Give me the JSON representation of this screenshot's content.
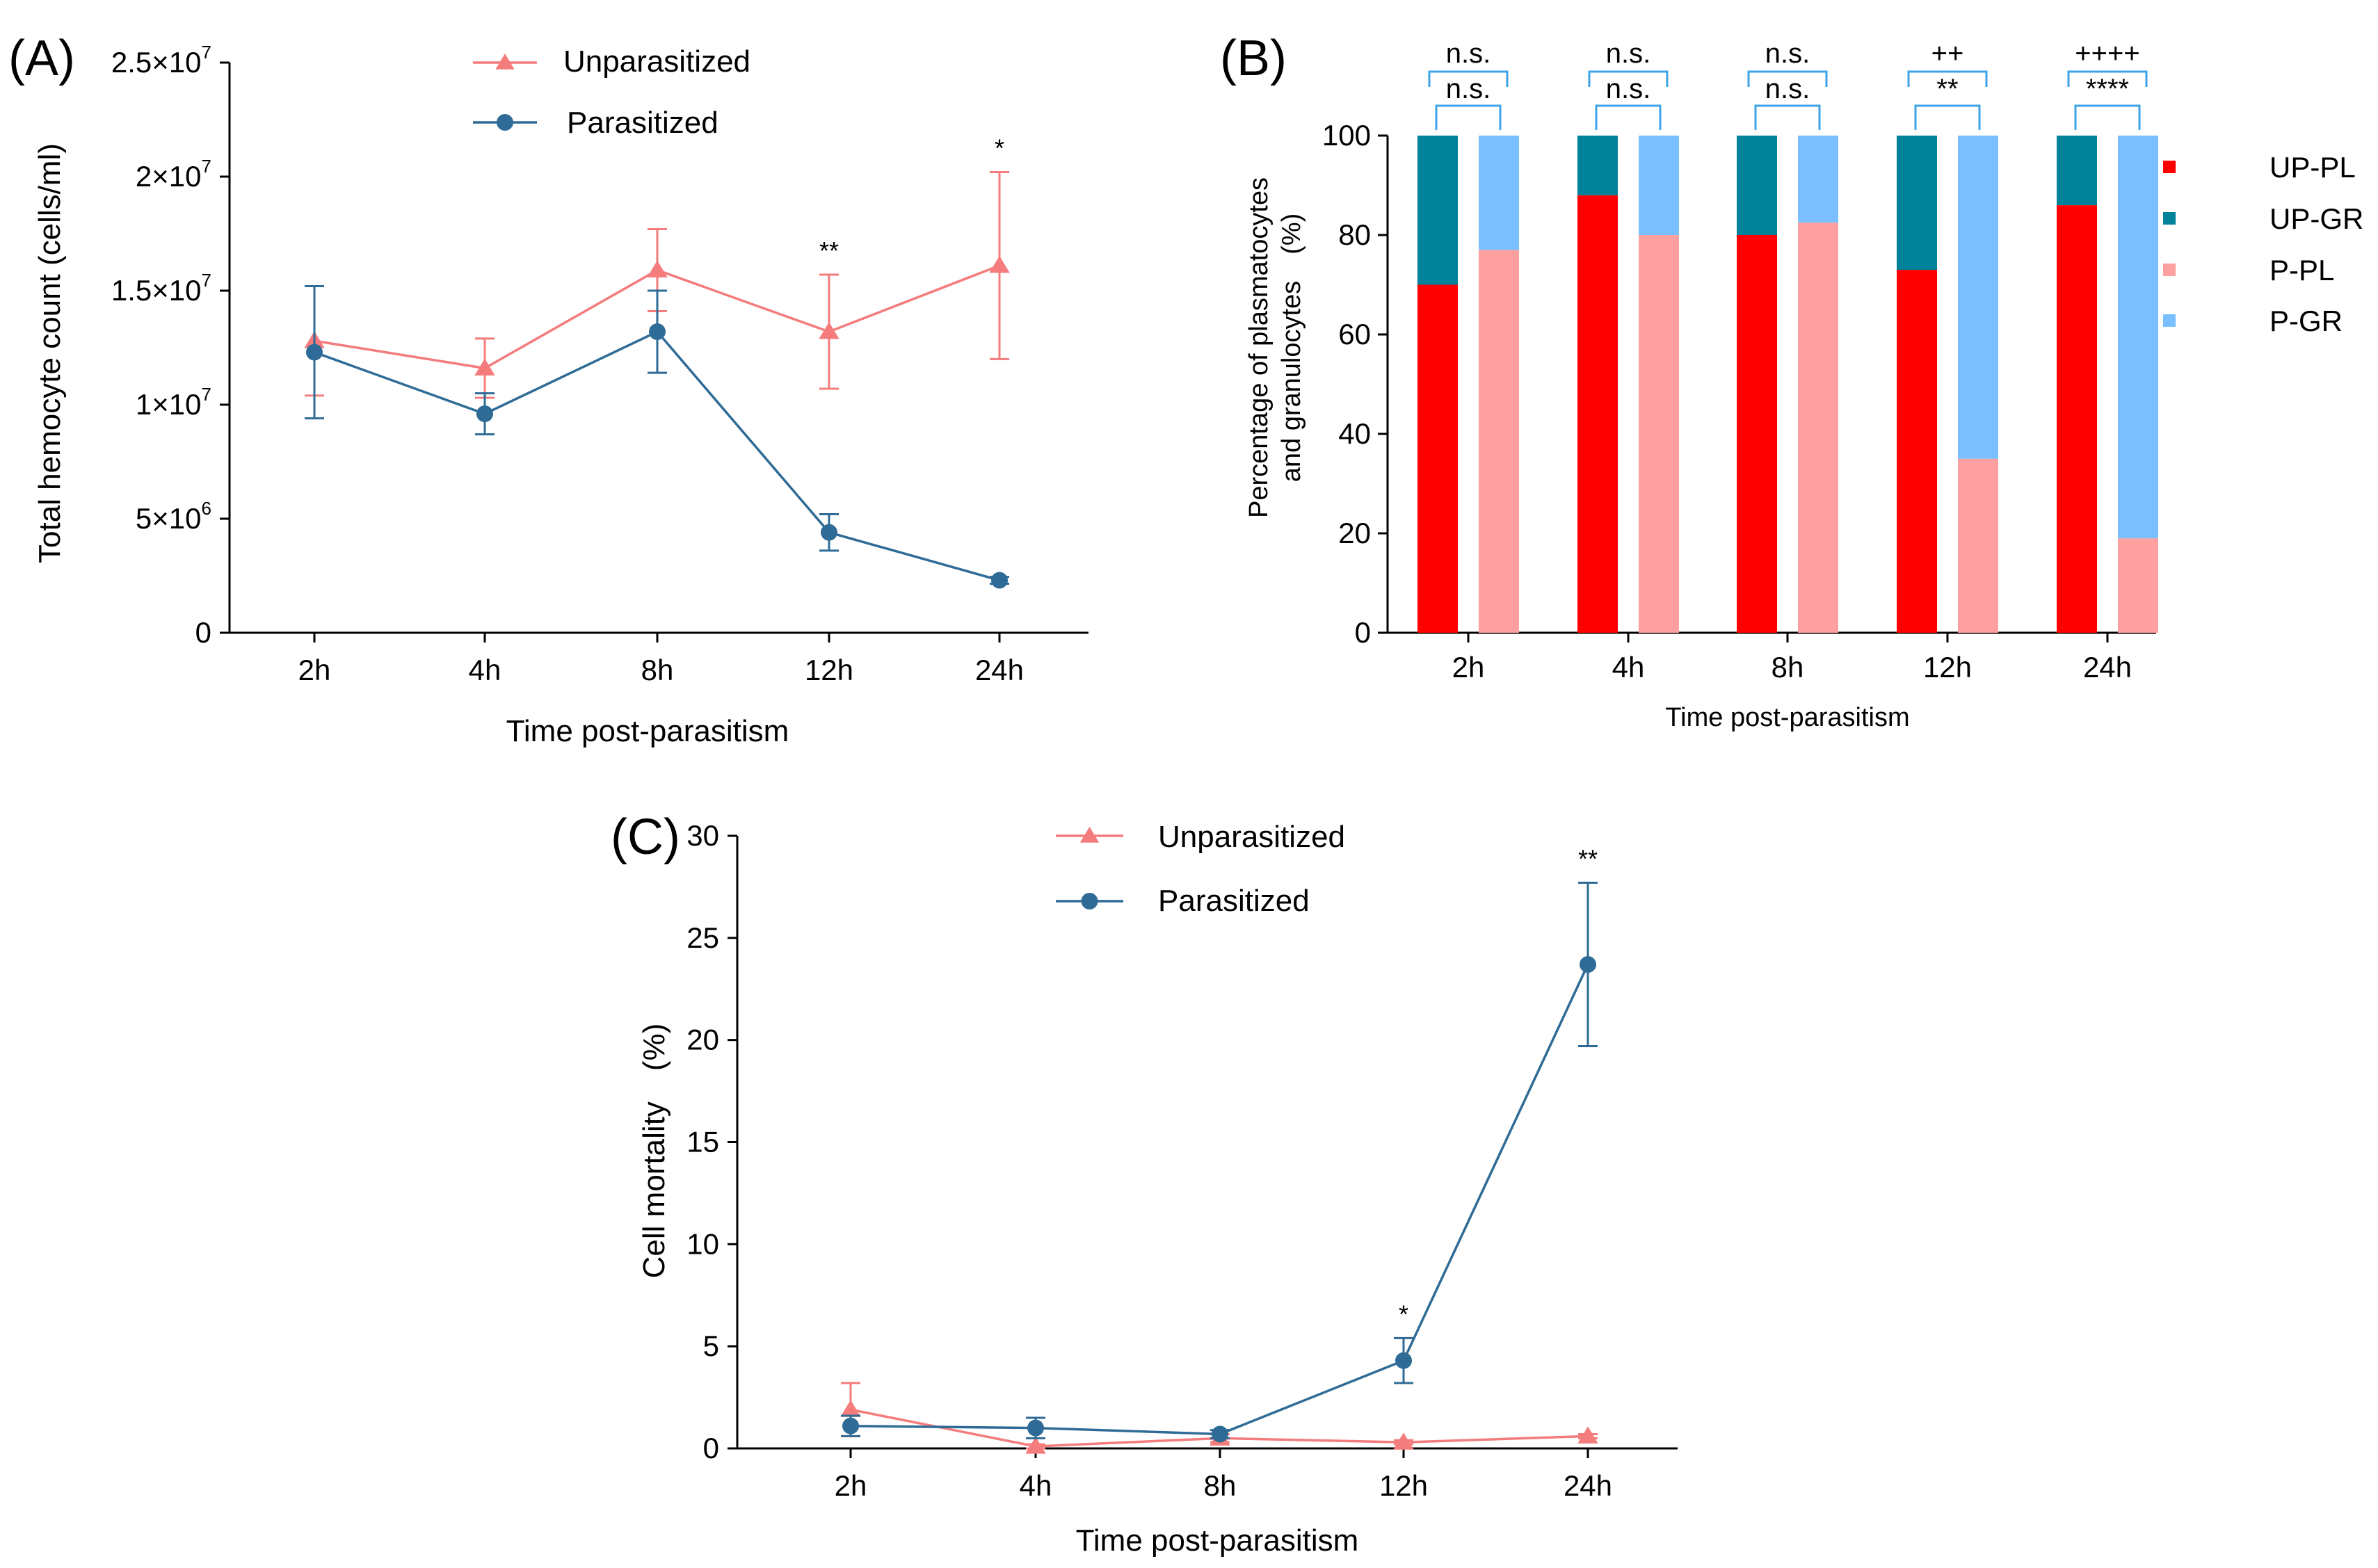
{
  "chart_data": [
    {
      "panel": "(A)",
      "type": "line",
      "xlabel": "Time post-parasitism",
      "ylabel": "Total hemocyte count (cells/ml)",
      "categories": [
        "2h",
        "4h",
        "8h",
        "12h",
        "24h"
      ],
      "ylim": [
        0,
        25000000
      ],
      "yticks": [
        0,
        5000000,
        10000000,
        15000000,
        20000000,
        25000000
      ],
      "ytick_labels": [
        {
          "base": "0",
          "exp": ""
        },
        {
          "base": "5×10",
          "exp": "6"
        },
        {
          "base": "1×10",
          "exp": "7"
        },
        {
          "base": "1.5×10",
          "exp": "7"
        },
        {
          "base": "2×10",
          "exp": "7"
        },
        {
          "base": "2.5×10",
          "exp": "7"
        }
      ],
      "series": [
        {
          "name": "Unparasitized",
          "marker": "triangle",
          "color": "#F47C7C",
          "values": [
            12800000,
            11600000,
            15900000,
            13200000,
            16100000
          ],
          "errors": [
            2400000,
            1300000,
            1800000,
            2500000,
            4100000
          ]
        },
        {
          "name": "Parasitized",
          "marker": "circle",
          "color": "#2E6B96",
          "values": [
            12300000,
            9600000,
            13200000,
            4400000,
            2300000
          ],
          "errors": [
            2900000,
            900000,
            1800000,
            800000,
            150000
          ]
        }
      ],
      "significance": [
        {
          "category": "12h",
          "label": "**"
        },
        {
          "category": "24h",
          "label": "*"
        }
      ]
    },
    {
      "panel": "(B)",
      "type": "bar",
      "stacked": true,
      "xlabel": "Time post-parasitism",
      "ylabel_lines": [
        "Percentage of plasmatocytes",
        "and granulocytes　(%)"
      ],
      "categories": [
        "2h",
        "4h",
        "8h",
        "12h",
        "24h"
      ],
      "ylim": [
        0,
        100
      ],
      "yticks": [
        0,
        20,
        40,
        60,
        80,
        100
      ],
      "legend": [
        {
          "name": "UP-PL",
          "color": "#FF0000"
        },
        {
          "name": "UP-GR",
          "color": "#00829B"
        },
        {
          "name": "P-PL",
          "color": "#FFA0A0"
        },
        {
          "name": "P-GR",
          "color": "#7ABFFF"
        }
      ],
      "unparasitized_PL": [
        70,
        88,
        80,
        73,
        86
      ],
      "unparasitized_GR": [
        30,
        12,
        20,
        27,
        14
      ],
      "parasitized_PL": [
        77,
        80,
        82.5,
        35,
        19
      ],
      "parasitized_GR": [
        23,
        20,
        17.5,
        65,
        81
      ],
      "sig_top": [
        "n.s.",
        "n.s.",
        "n.s.",
        "++",
        "++++"
      ],
      "sig_bottom": [
        "n.s.",
        "n.s.",
        "n.s.",
        "**",
        "****"
      ],
      "bracket_color": "#3DA3E8"
    },
    {
      "panel": "(C)",
      "type": "line",
      "xlabel": "Time post-parasitism",
      "ylabel": "Cell mortality　(%)",
      "categories": [
        "2h",
        "4h",
        "8h",
        "12h",
        "24h"
      ],
      "ylim": [
        0,
        30
      ],
      "yticks": [
        0,
        5,
        10,
        15,
        20,
        25,
        30
      ],
      "series": [
        {
          "name": "Unparasitized",
          "marker": "triangle",
          "color": "#F47C7C",
          "values": [
            1.9,
            0.1,
            0.5,
            0.3,
            0.6
          ],
          "errors": [
            1.3,
            0.1,
            0.2,
            0.1,
            0.1
          ]
        },
        {
          "name": "Parasitized",
          "marker": "circle",
          "color": "#2E6B96",
          "values": [
            1.1,
            1.0,
            0.7,
            4.3,
            23.7
          ],
          "errors": [
            0.5,
            0.5,
            0.2,
            1.1,
            4.0
          ]
        }
      ],
      "significance": [
        {
          "category": "12h",
          "label": "*"
        },
        {
          "category": "24h",
          "label": "**"
        }
      ]
    }
  ]
}
